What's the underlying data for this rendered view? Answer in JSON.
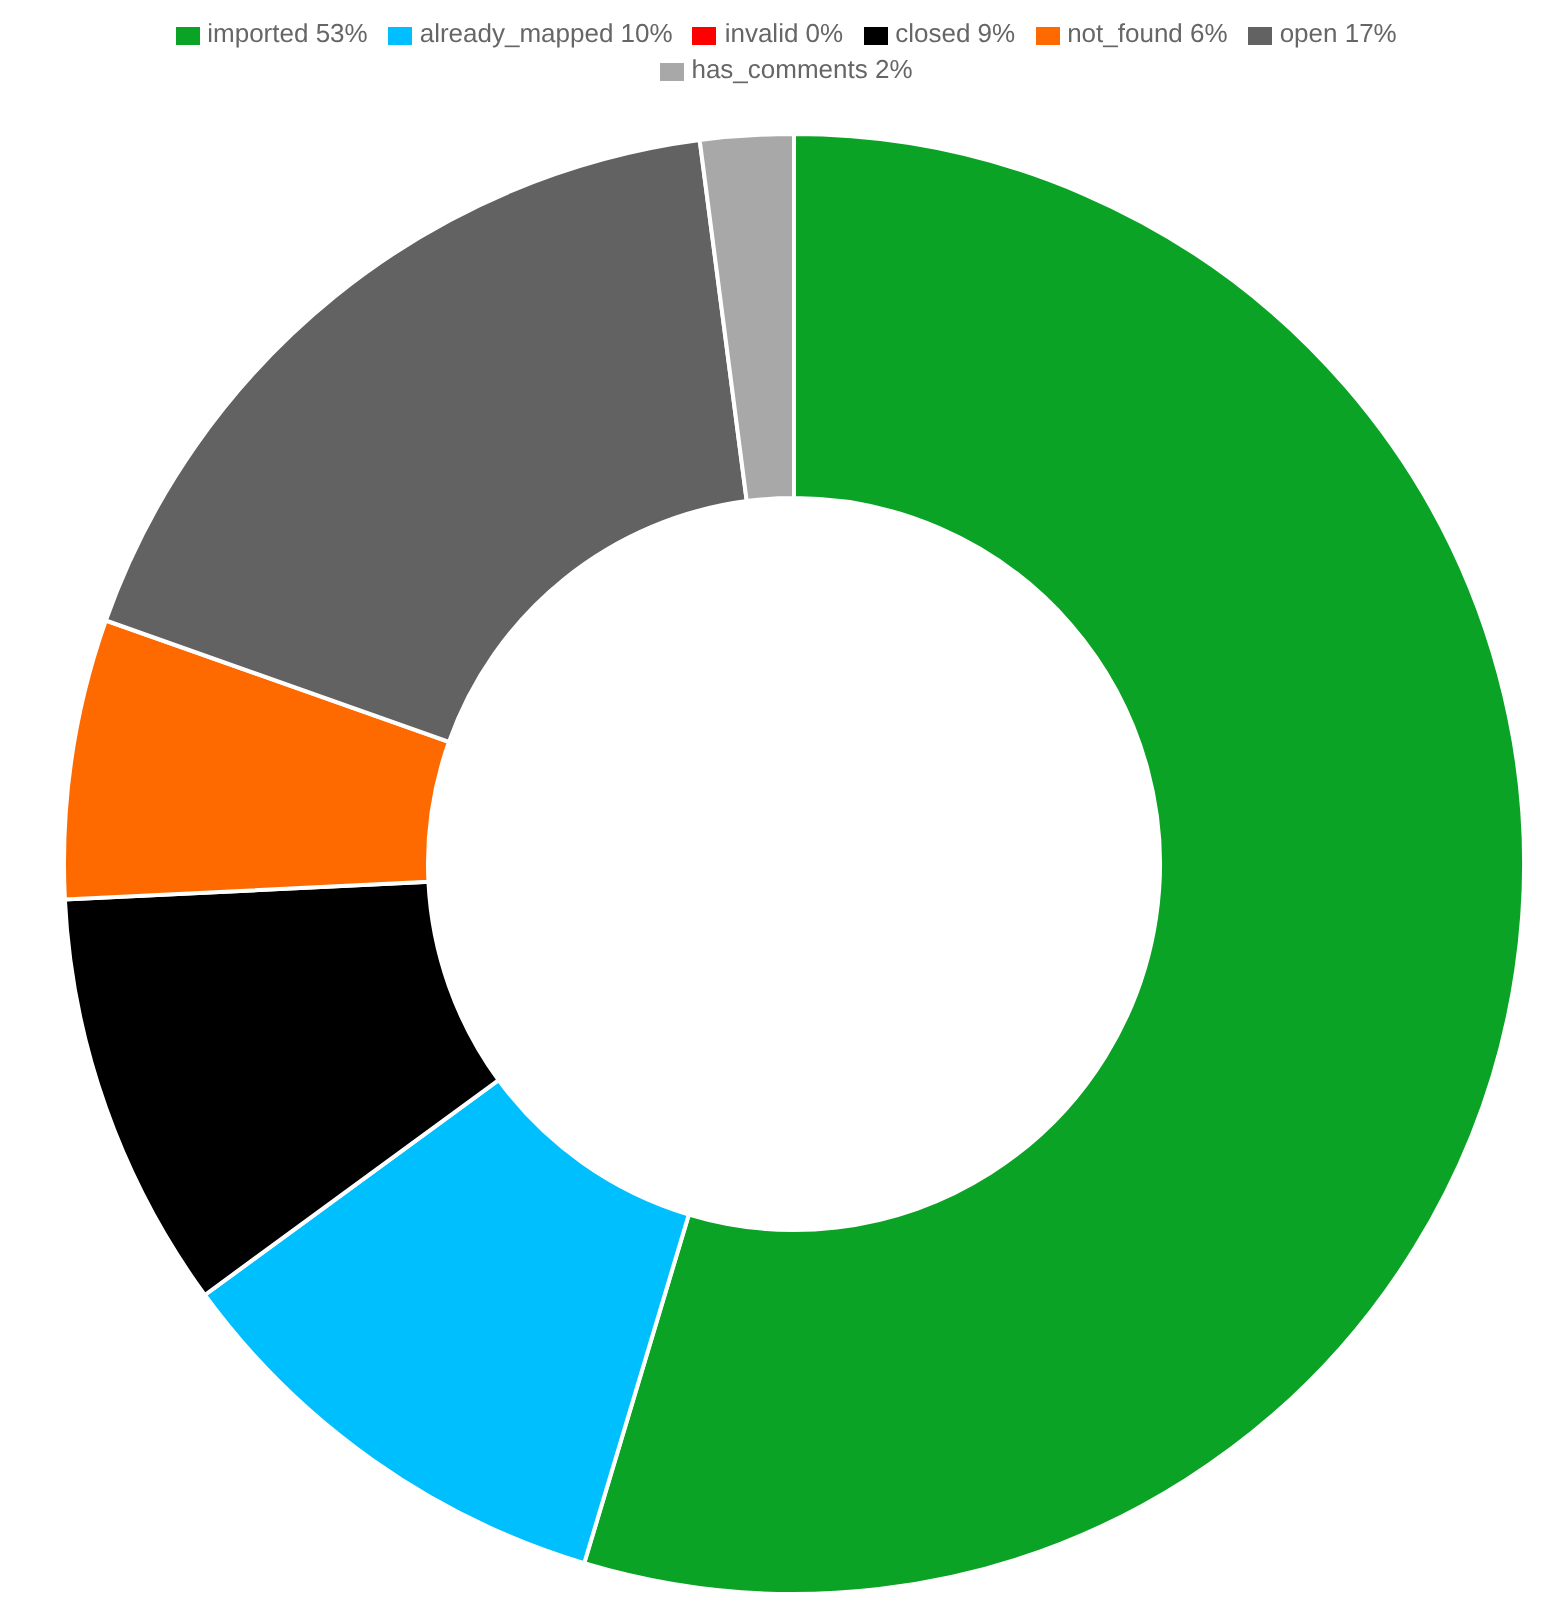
{
  "chart_data": {
    "type": "donut",
    "categories": [
      "imported 53%",
      "already_mapped 10%",
      "invalid 0%",
      "closed 9%",
      "not_found 6%",
      "open 17%",
      "has_comments 2%"
    ],
    "values": [
      53,
      10,
      0,
      9,
      6,
      17,
      2
    ],
    "colors": [
      "#0ba325",
      "#00bfff",
      "#ff0000",
      "#000000",
      "#ff6a00",
      "#626262",
      "#a8a8a8"
    ],
    "legend": "top"
  }
}
